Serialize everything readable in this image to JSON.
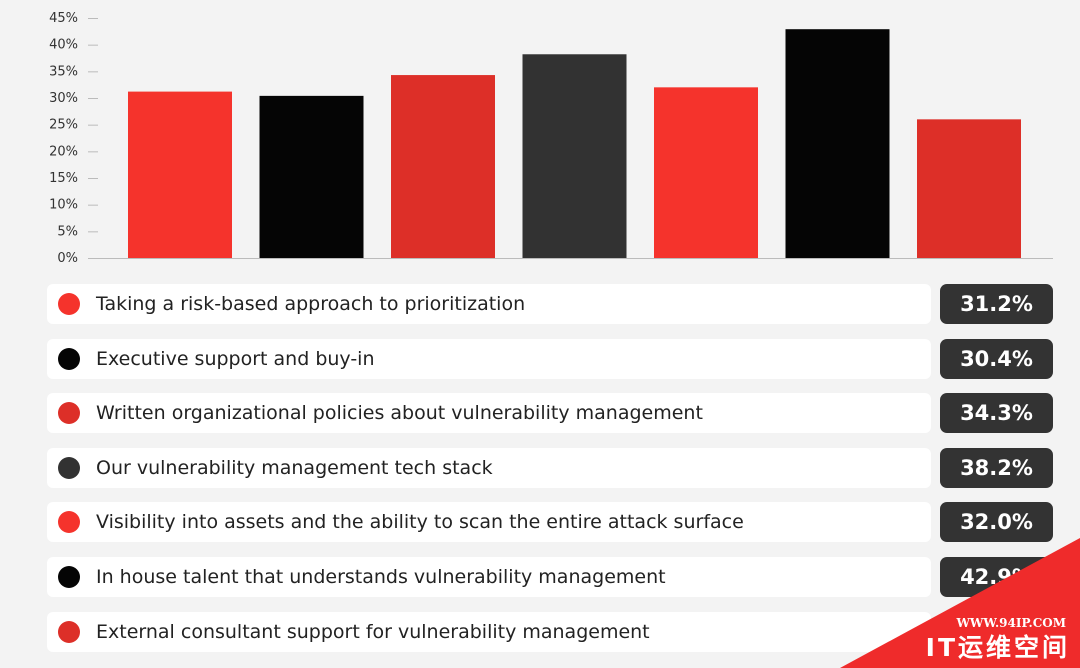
{
  "chart_data": {
    "type": "bar",
    "categories": [
      "Taking a risk-based approach to prioritization",
      "Executive support and buy-in",
      "Written organizational policies about vulnerability management",
      "Our vulnerability management tech stack",
      "Visibility into assets and the ability to scan the entire attack surface",
      "In house talent that understands vulnerability management",
      "External consultant support for vulnerability management"
    ],
    "values": [
      31.2,
      30.4,
      34.3,
      38.2,
      32.0,
      42.9,
      26.0
    ],
    "value_labels": [
      "31.2%",
      "30.4%",
      "34.3%",
      "38.2%",
      "32.0%",
      "42.9%",
      ""
    ],
    "colors": [
      "#f5332c",
      "#050505",
      "#dd2f28",
      "#323232",
      "#f5332c",
      "#050505",
      "#dd2f28"
    ],
    "yticks": [
      "0%",
      "5%",
      "10%",
      "15%",
      "20%",
      "25%",
      "30%",
      "35%",
      "40%",
      "45%"
    ],
    "ylim": [
      0,
      45
    ],
    "grid": false,
    "legend": "bottom"
  },
  "watermark": {
    "url_text": "WWW.94IP.COM",
    "brand_text": "IT运维空间"
  }
}
